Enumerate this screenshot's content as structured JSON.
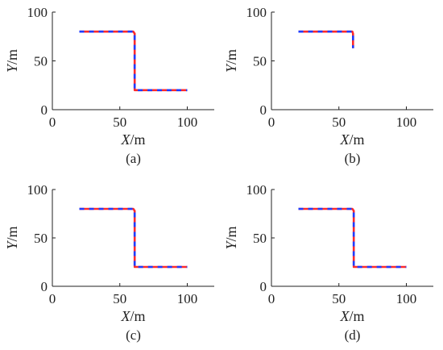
{
  "colors": {
    "line_red": "#ff2a2a",
    "line_blue": "#1e3cff",
    "axis": "#222222"
  },
  "chart_data": [
    {
      "type": "line",
      "caption": "(a)",
      "xlabel": "X/m",
      "ylabel": "Y/m",
      "xlim": [
        0,
        120
      ],
      "ylim": [
        0,
        100
      ],
      "xticks": [
        0,
        50,
        100
      ],
      "yticks": [
        0,
        50,
        100
      ],
      "grid": false,
      "series": [
        {
          "style": "red-blue dashed",
          "x": [
            20,
            60,
            61,
            61,
            100
          ],
          "y": [
            80,
            80,
            78,
            20,
            20
          ]
        }
      ]
    },
    {
      "type": "line",
      "caption": "(b)",
      "xlabel": "X/m",
      "ylabel": "Y/m",
      "xlim": [
        0,
        120
      ],
      "ylim": [
        0,
        100
      ],
      "xticks": [
        0,
        50,
        100
      ],
      "yticks": [
        0,
        50,
        100
      ],
      "grid": false,
      "series": [
        {
          "style": "red-blue dashed",
          "x": [
            20,
            60,
            60.5,
            60.5
          ],
          "y": [
            80,
            80,
            78,
            63
          ]
        }
      ]
    },
    {
      "type": "line",
      "caption": "(c)",
      "xlabel": "X/m",
      "ylabel": "Y/m",
      "xlim": [
        0,
        120
      ],
      "ylim": [
        0,
        100
      ],
      "xticks": [
        0,
        50,
        100
      ],
      "yticks": [
        0,
        50,
        100
      ],
      "grid": false,
      "series": [
        {
          "style": "red-blue dashed",
          "x": [
            20,
            60,
            61,
            61,
            100
          ],
          "y": [
            80,
            80,
            78,
            20,
            20
          ]
        }
      ]
    },
    {
      "type": "line",
      "caption": "(d)",
      "xlabel": "X/m",
      "ylabel": "Y/m",
      "xlim": [
        0,
        120
      ],
      "ylim": [
        0,
        100
      ],
      "xticks": [
        0,
        50,
        100
      ],
      "yticks": [
        0,
        50,
        100
      ],
      "grid": false,
      "series": [
        {
          "style": "red-blue dashed",
          "x": [
            20,
            60,
            61,
            61,
            100
          ],
          "y": [
            80,
            80,
            78,
            20,
            20
          ]
        }
      ]
    }
  ]
}
